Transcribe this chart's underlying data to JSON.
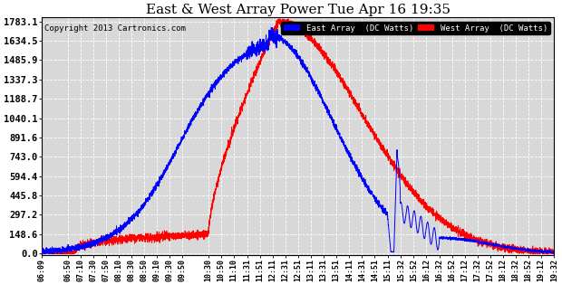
{
  "title": "East & West Array Power Tue Apr 16 19:35",
  "copyright": "Copyright 2013 Cartronics.com",
  "legend_east": "East Array  (DC Watts)",
  "legend_west": "West Array  (DC Watts)",
  "east_color": "#0000ff",
  "west_color": "#ff0000",
  "bg_color": "#ffffff",
  "plot_bg_color": "#d8d8d8",
  "grid_color": "#ffffff",
  "yticks": [
    0.0,
    148.6,
    297.2,
    445.8,
    594.4,
    743.0,
    891.6,
    1040.1,
    1188.7,
    1337.3,
    1485.9,
    1634.5,
    1783.1
  ],
  "xtick_labels": [
    "06:09",
    "06:50",
    "07:10",
    "07:30",
    "07:50",
    "08:10",
    "08:30",
    "08:50",
    "09:10",
    "09:30",
    "09:50",
    "10:30",
    "10:50",
    "11:10",
    "11:31",
    "11:51",
    "12:11",
    "12:31",
    "12:51",
    "13:11",
    "13:31",
    "13:51",
    "14:11",
    "14:31",
    "14:51",
    "15:11",
    "15:32",
    "15:52",
    "16:12",
    "16:32",
    "16:52",
    "17:12",
    "17:32",
    "17:52",
    "18:12",
    "18:32",
    "18:52",
    "19:12",
    "19:32"
  ],
  "ymax": 1783.1,
  "ymin": 0.0
}
